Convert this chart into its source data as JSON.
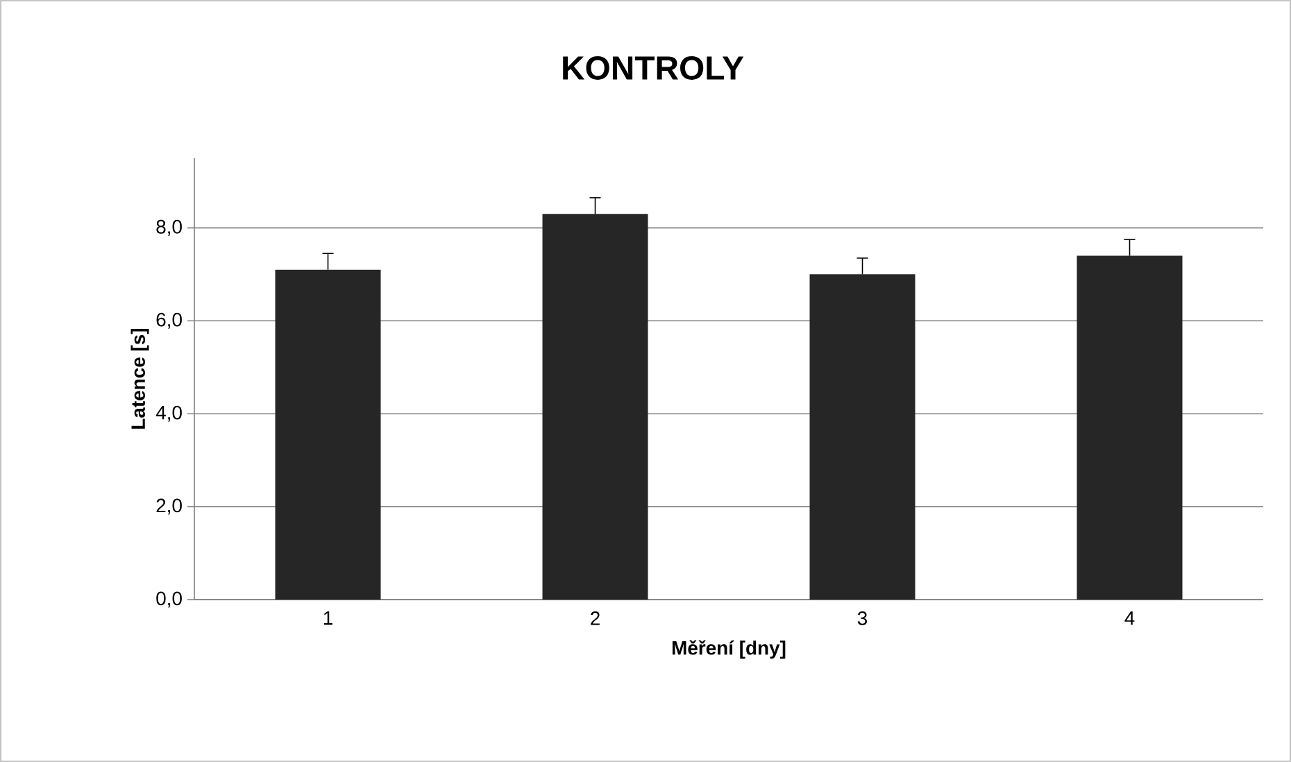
{
  "chart_data": {
    "type": "bar",
    "title": "KONTROLY",
    "xlabel": "Měření [dny]",
    "ylabel": "Latence [s]",
    "categories": [
      "1",
      "2",
      "3",
      "4"
    ],
    "values": [
      7.1,
      8.3,
      7.0,
      7.4
    ],
    "errors": [
      0.35,
      0.35,
      0.35,
      0.35
    ],
    "color": "#262626",
    "ylim": [
      0,
      9.5
    ],
    "yticks": [
      {
        "value": 0,
        "label": "0,0"
      },
      {
        "value": 2,
        "label": "2,0"
      },
      {
        "value": 4,
        "label": "4,0"
      },
      {
        "value": 6,
        "label": "6,0"
      },
      {
        "value": 8,
        "label": "8,0"
      }
    ],
    "grid": "y"
  }
}
